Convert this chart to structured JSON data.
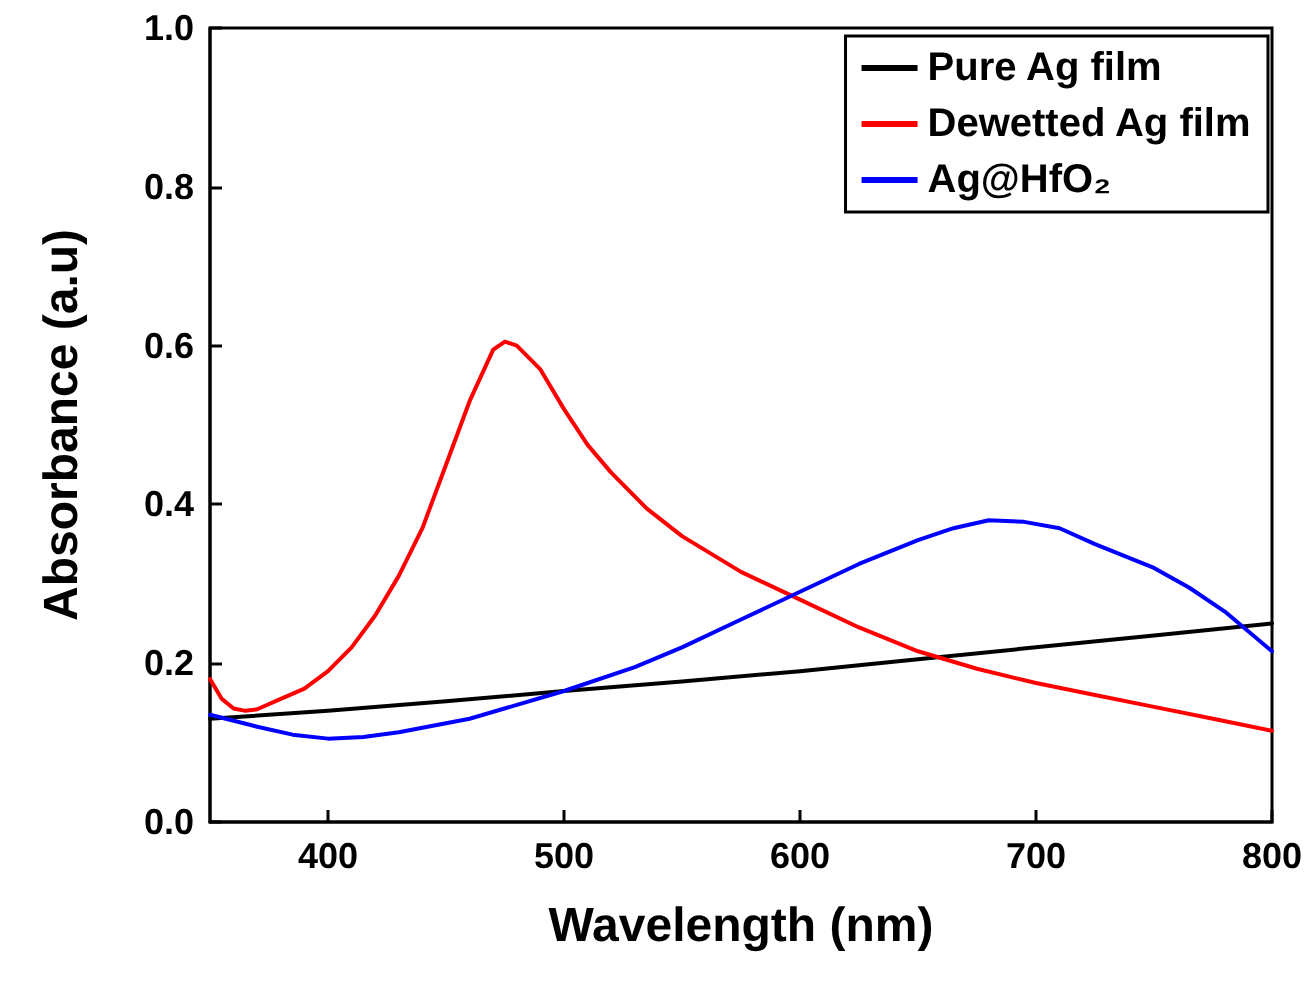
{
  "chart_data": {
    "type": "line",
    "xlabel": "Wavelength (nm)",
    "ylabel": "Absorbance (a.u)",
    "xlim": [
      350,
      800
    ],
    "xticks": [
      400,
      500,
      600,
      700,
      800
    ],
    "ylim": [
      0,
      1
    ],
    "yticks": [
      {
        "value": 0,
        "label": "0.0"
      },
      {
        "value": 0.2,
        "label": "0.2"
      },
      {
        "value": 0.4,
        "label": "0.4"
      },
      {
        "value": 0.6,
        "label": "0.6"
      },
      {
        "value": 0.8,
        "label": "0.8"
      },
      {
        "value": 1,
        "label": "1.0"
      }
    ],
    "legend": "top right",
    "grid": false,
    "marker": "none",
    "line_style": "solid",
    "series": [
      {
        "name": "Pure Ag film",
        "color": "#000000",
        "x": [
          350,
          400,
          450,
          500,
          550,
          600,
          650,
          700,
          750,
          800
        ],
        "values": [
          0.13,
          0.14,
          0.152,
          0.165,
          0.177,
          0.19,
          0.205,
          0.22,
          0.235,
          0.25
        ]
      },
      {
        "name": "Dewetted Ag film",
        "color": "#ff0000",
        "x": [
          350,
          355,
          360,
          365,
          370,
          380,
          390,
          400,
          410,
          420,
          430,
          440,
          450,
          460,
          470,
          475,
          480,
          490,
          500,
          510,
          520,
          535,
          550,
          575,
          600,
          625,
          650,
          675,
          700,
          725,
          750,
          775,
          800
        ],
        "values": [
          0.18,
          0.155,
          0.143,
          0.14,
          0.142,
          0.155,
          0.168,
          0.19,
          0.22,
          0.26,
          0.31,
          0.37,
          0.45,
          0.53,
          0.595,
          0.605,
          0.6,
          0.57,
          0.52,
          0.475,
          0.44,
          0.395,
          0.36,
          0.315,
          0.28,
          0.245,
          0.215,
          0.193,
          0.175,
          0.16,
          0.145,
          0.13,
          0.115
        ]
      },
      {
        "name": "Ag@HfO₂",
        "color": "#0000ff",
        "x": [
          350,
          370,
          385,
          400,
          415,
          430,
          460,
          500,
          530,
          550,
          575,
          600,
          625,
          650,
          665,
          680,
          695,
          710,
          725,
          750,
          765,
          780,
          800
        ],
        "values": [
          0.135,
          0.12,
          0.11,
          0.105,
          0.107,
          0.113,
          0.13,
          0.165,
          0.195,
          0.22,
          0.255,
          0.29,
          0.325,
          0.355,
          0.37,
          0.38,
          0.378,
          0.37,
          0.35,
          0.32,
          0.295,
          0.265,
          0.215
        ]
      }
    ]
  }
}
